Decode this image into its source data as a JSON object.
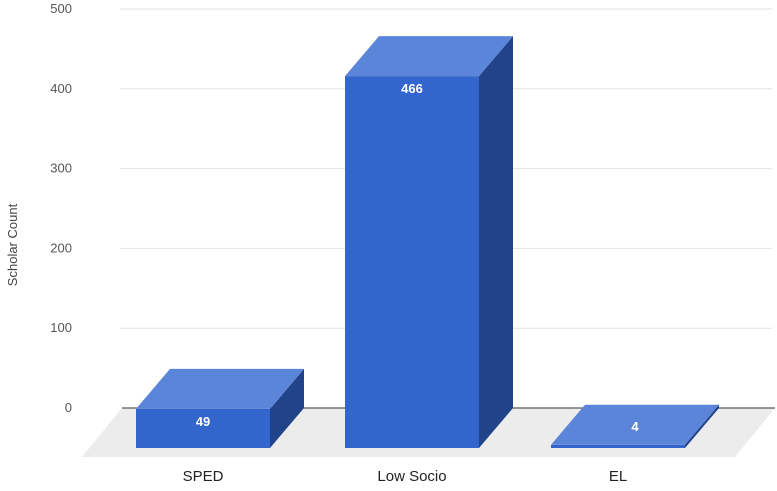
{
  "chart_data": {
    "type": "bar",
    "title": "",
    "xlabel": "",
    "ylabel": "Scholar Count",
    "categories": [
      "SPED",
      "Low Socio",
      "EL"
    ],
    "values": [
      49,
      466,
      4
    ],
    "data_labels": [
      "49",
      "466",
      "4"
    ],
    "yticks": [
      "0",
      "100",
      "200",
      "300",
      "400",
      "500"
    ],
    "ylim": [
      0,
      500
    ],
    "grid": true,
    "legend": "none",
    "style": "3d",
    "colors": {
      "front": "#3366cc",
      "top": "#5b85d9",
      "side": "#21438a",
      "floor": "#ececec",
      "grid": "#e2e2e2",
      "axis": "#333333"
    }
  }
}
